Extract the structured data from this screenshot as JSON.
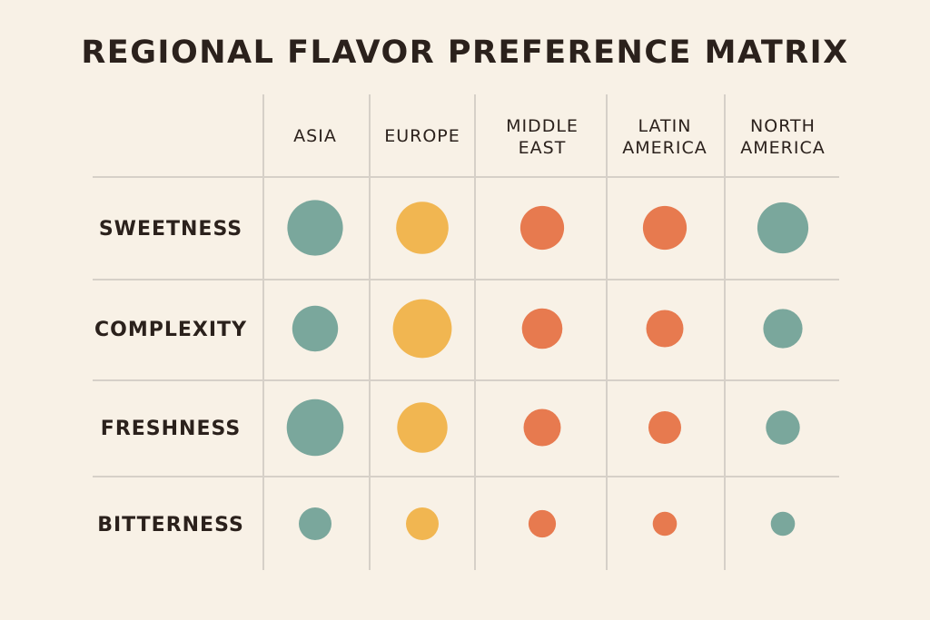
{
  "colors": {
    "teal": "#7aa79c",
    "yellow": "#f1b651",
    "orange": "#e77a4f",
    "grid": "#d6d0c8",
    "background": "#f8f1e6"
  },
  "chart_data": {
    "type": "bubble-matrix",
    "title": "REGIONAL FLAVOR PREFERENCE MATRIX",
    "columns": [
      {
        "label_lines": [
          "ASIA"
        ],
        "color": "teal"
      },
      {
        "label_lines": [
          "EUROPE"
        ],
        "color": "yellow"
      },
      {
        "label_lines": [
          "MIDDLE",
          "EAST"
        ],
        "color": "orange"
      },
      {
        "label_lines": [
          "LATIN",
          "AMERICA"
        ],
        "color": "orange"
      },
      {
        "label_lines": [
          "NORTH",
          "AMERICA"
        ],
        "color": "teal"
      }
    ],
    "rows": [
      "SWEETNESS",
      "COMPLEXITY",
      "FRESHNESS",
      "BITTERNESS"
    ],
    "values": [
      [
        0.85,
        0.8,
        0.67,
        0.67,
        0.78
      ],
      [
        0.7,
        0.9,
        0.62,
        0.57,
        0.6
      ],
      [
        0.87,
        0.77,
        0.57,
        0.5,
        0.52
      ],
      [
        0.5,
        0.5,
        0.42,
        0.37,
        0.37
      ]
    ],
    "grid": true
  }
}
